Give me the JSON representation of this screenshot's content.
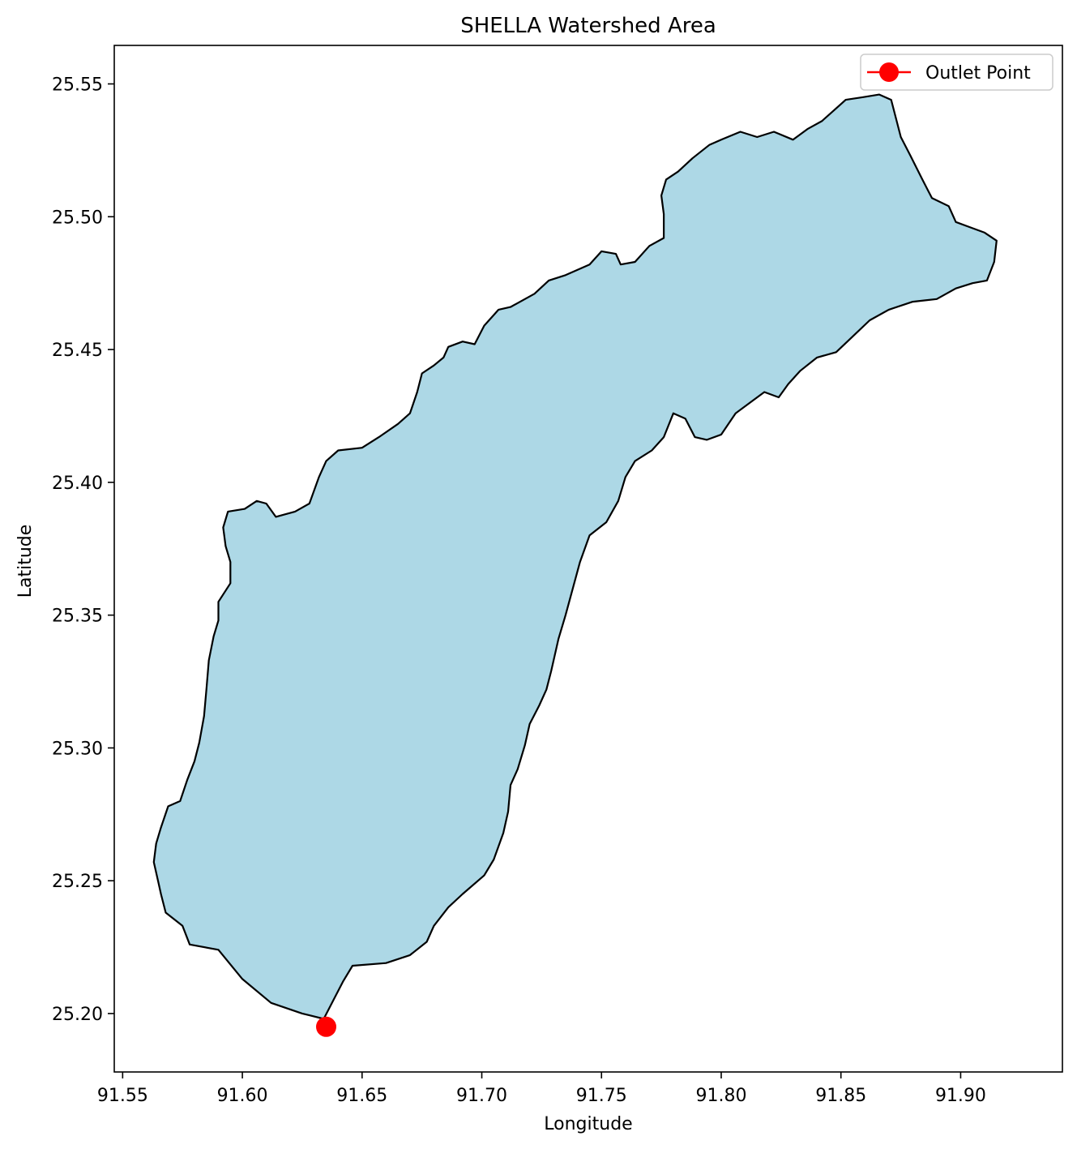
{
  "title": "SHELLA Watershed Area",
  "x_axis": {
    "label": "Longitude",
    "range": [
      91.5465,
      91.9425
    ],
    "ticks": [
      91.55,
      91.6,
      91.65,
      91.7,
      91.75,
      91.8,
      91.85,
      91.9
    ],
    "tick_labels": [
      "91.55",
      "91.60",
      "91.65",
      "91.70",
      "91.75",
      "91.80",
      "91.85",
      "91.90"
    ]
  },
  "y_axis": {
    "label": "Latitude",
    "range": [
      25.178,
      25.5645
    ],
    "ticks": [
      25.2,
      25.25,
      25.3,
      25.35,
      25.4,
      25.45,
      25.5,
      25.55
    ],
    "tick_labels": [
      "25.20",
      "25.25",
      "25.30",
      "25.35",
      "25.40",
      "25.45",
      "25.50",
      "25.55"
    ]
  },
  "legend": {
    "position": "top-right",
    "items": [
      {
        "label": "Outlet Point",
        "color": "#ff0000",
        "marker": "circle"
      }
    ]
  },
  "colors": {
    "watershed_fill": "#add8e6",
    "watershed_edge": "#000000",
    "outlet": "#ff0000"
  },
  "chart_data": {
    "type": "map",
    "title": "SHELLA Watershed Area",
    "xlabel": "Longitude",
    "ylabel": "Latitude",
    "xlim": [
      91.5465,
      91.9425
    ],
    "ylim": [
      25.178,
      25.5645
    ],
    "grid": false,
    "legend_position": "top-right",
    "watershed_boundary": [
      [
        91.634,
        25.198
      ],
      [
        91.625,
        25.2
      ],
      [
        91.612,
        25.204
      ],
      [
        91.6,
        25.213
      ],
      [
        91.59,
        25.224
      ],
      [
        91.578,
        25.226
      ],
      [
        91.575,
        25.233
      ],
      [
        91.568,
        25.238
      ],
      [
        91.566,
        25.245
      ],
      [
        91.565,
        25.249
      ],
      [
        91.563,
        25.257
      ],
      [
        91.564,
        25.264
      ],
      [
        91.566,
        25.27
      ],
      [
        91.569,
        25.278
      ],
      [
        91.574,
        25.28
      ],
      [
        91.577,
        25.288
      ],
      [
        91.58,
        25.295
      ],
      [
        91.582,
        25.302
      ],
      [
        91.584,
        25.312
      ],
      [
        91.585,
        25.322
      ],
      [
        91.586,
        25.333
      ],
      [
        91.588,
        25.342
      ],
      [
        91.59,
        25.348
      ],
      [
        91.59,
        25.355
      ],
      [
        91.595,
        25.362
      ],
      [
        91.595,
        25.37
      ],
      [
        91.593,
        25.376
      ],
      [
        91.592,
        25.383
      ],
      [
        91.594,
        25.389
      ],
      [
        91.601,
        25.39
      ],
      [
        91.606,
        25.393
      ],
      [
        91.61,
        25.392
      ],
      [
        91.614,
        25.387
      ],
      [
        91.622,
        25.389
      ],
      [
        91.628,
        25.392
      ],
      [
        91.632,
        25.402
      ],
      [
        91.635,
        25.408
      ],
      [
        91.64,
        25.412
      ],
      [
        91.65,
        25.413
      ],
      [
        91.657,
        25.417
      ],
      [
        91.665,
        25.422
      ],
      [
        91.67,
        25.426
      ],
      [
        91.673,
        25.434
      ],
      [
        91.675,
        25.441
      ],
      [
        91.68,
        25.444
      ],
      [
        91.684,
        25.447
      ],
      [
        91.686,
        25.451
      ],
      [
        91.692,
        25.453
      ],
      [
        91.697,
        25.452
      ],
      [
        91.701,
        25.459
      ],
      [
        91.707,
        25.465
      ],
      [
        91.712,
        25.466
      ],
      [
        91.722,
        25.471
      ],
      [
        91.728,
        25.476
      ],
      [
        91.735,
        25.478
      ],
      [
        91.74,
        25.48
      ],
      [
        91.745,
        25.482
      ],
      [
        91.75,
        25.487
      ],
      [
        91.756,
        25.486
      ],
      [
        91.758,
        25.482
      ],
      [
        91.764,
        25.483
      ],
      [
        91.77,
        25.489
      ],
      [
        91.776,
        25.492
      ],
      [
        91.776,
        25.501
      ],
      [
        91.775,
        25.508
      ],
      [
        91.777,
        25.514
      ],
      [
        91.782,
        25.517
      ],
      [
        91.788,
        25.522
      ],
      [
        91.795,
        25.527
      ],
      [
        91.8,
        25.529
      ],
      [
        91.808,
        25.532
      ],
      [
        91.815,
        25.53
      ],
      [
        91.822,
        25.532
      ],
      [
        91.83,
        25.529
      ],
      [
        91.836,
        25.533
      ],
      [
        91.842,
        25.536
      ],
      [
        91.847,
        25.54
      ],
      [
        91.852,
        25.544
      ],
      [
        91.859,
        25.545
      ],
      [
        91.866,
        25.546
      ],
      [
        91.871,
        25.544
      ],
      [
        91.875,
        25.53
      ],
      [
        91.879,
        25.523
      ],
      [
        91.884,
        25.514
      ],
      [
        91.888,
        25.507
      ],
      [
        91.895,
        25.504
      ],
      [
        91.898,
        25.498
      ],
      [
        91.904,
        25.496
      ],
      [
        91.91,
        25.494
      ],
      [
        91.915,
        25.491
      ],
      [
        91.914,
        25.483
      ],
      [
        91.911,
        25.476
      ],
      [
        91.905,
        25.475
      ],
      [
        91.898,
        25.473
      ],
      [
        91.89,
        25.469
      ],
      [
        91.88,
        25.468
      ],
      [
        91.87,
        25.465
      ],
      [
        91.862,
        25.461
      ],
      [
        91.855,
        25.455
      ],
      [
        91.848,
        25.449
      ],
      [
        91.84,
        25.447
      ],
      [
        91.833,
        25.442
      ],
      [
        91.828,
        25.437
      ],
      [
        91.824,
        25.432
      ],
      [
        91.818,
        25.434
      ],
      [
        91.812,
        25.43
      ],
      [
        91.806,
        25.426
      ],
      [
        91.8,
        25.418
      ],
      [
        91.794,
        25.416
      ],
      [
        91.789,
        25.417
      ],
      [
        91.785,
        25.424
      ],
      [
        91.78,
        25.426
      ],
      [
        91.776,
        25.417
      ],
      [
        91.771,
        25.412
      ],
      [
        91.764,
        25.408
      ],
      [
        91.76,
        25.402
      ],
      [
        91.757,
        25.393
      ],
      [
        91.752,
        25.385
      ],
      [
        91.745,
        25.38
      ],
      [
        91.741,
        25.37
      ],
      [
        91.738,
        25.36
      ],
      [
        91.735,
        25.35
      ],
      [
        91.732,
        25.341
      ],
      [
        91.729,
        25.329
      ],
      [
        91.727,
        25.322
      ],
      [
        91.724,
        25.316
      ],
      [
        91.72,
        25.309
      ],
      [
        91.718,
        25.301
      ],
      [
        91.715,
        25.292
      ],
      [
        91.712,
        25.286
      ],
      [
        91.711,
        25.276
      ],
      [
        91.709,
        25.268
      ],
      [
        91.705,
        25.258
      ],
      [
        91.701,
        25.252
      ],
      [
        91.692,
        25.245
      ],
      [
        91.686,
        25.24
      ],
      [
        91.68,
        25.233
      ],
      [
        91.677,
        25.227
      ],
      [
        91.67,
        25.222
      ],
      [
        91.66,
        25.219
      ],
      [
        91.646,
        25.218
      ],
      [
        91.642,
        25.212
      ],
      [
        91.638,
        25.205
      ],
      [
        91.634,
        25.198
      ]
    ],
    "outlet_point": {
      "label": "Outlet Point",
      "lon": 91.635,
      "lat": 25.195
    }
  }
}
